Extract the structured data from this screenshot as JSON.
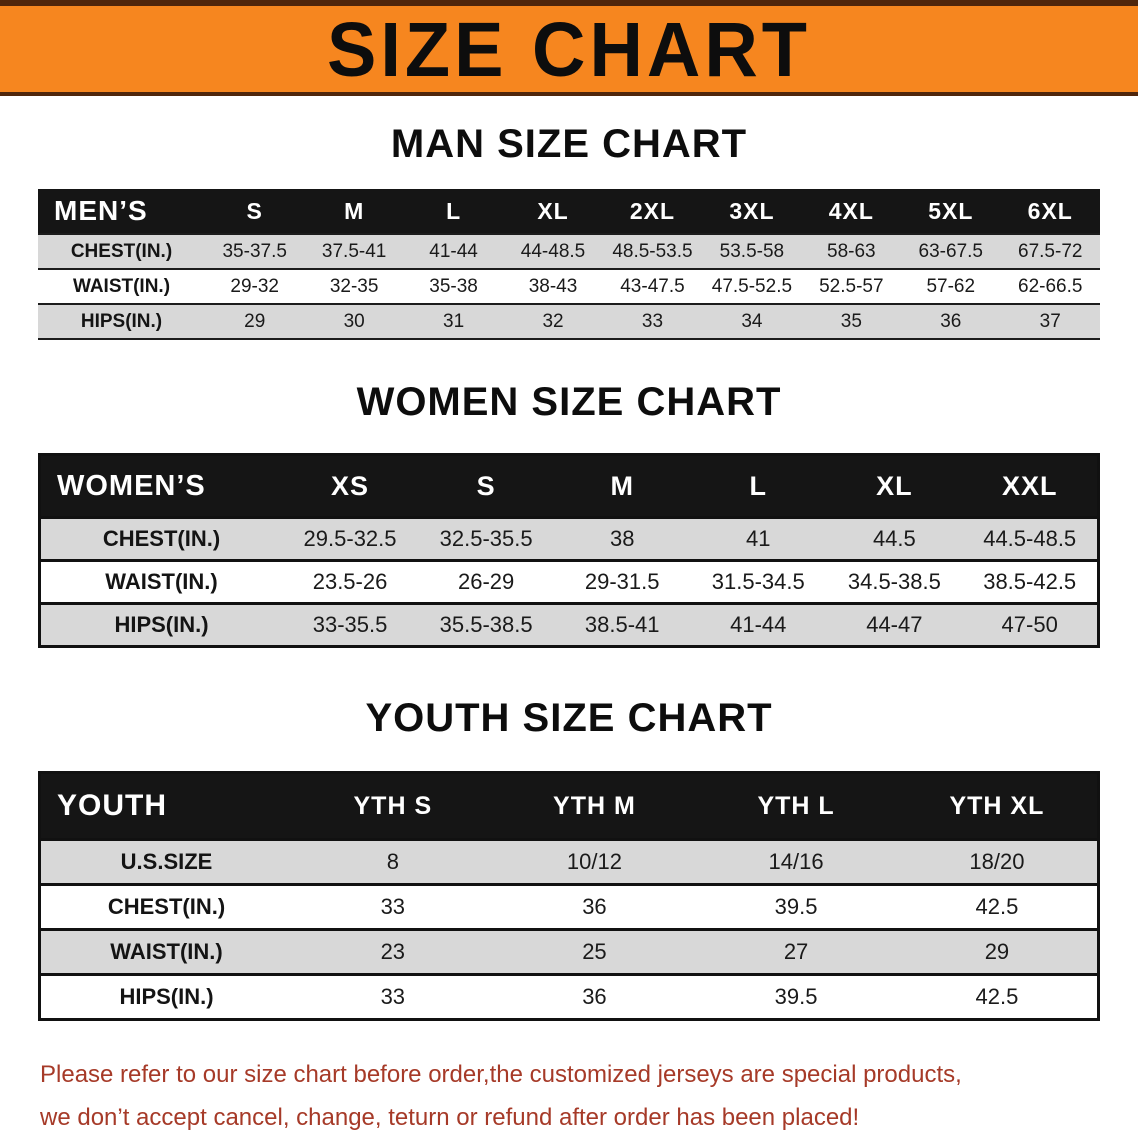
{
  "banner": {
    "title": "SIZE CHART"
  },
  "colors": {
    "banner_bg": "#F6861F",
    "banner_border": "#4F260C",
    "header_bg": "#151515",
    "row_alt": "#D8D8D8",
    "footer_text": "#A63A28"
  },
  "sections": [
    {
      "id": "men",
      "heading": "MAN SIZE CHART",
      "table": {
        "header": [
          "MEN’S",
          "S",
          "M",
          "L",
          "XL",
          "2XL",
          "3XL",
          "4XL",
          "5XL",
          "6XL"
        ],
        "rows": [
          {
            "label": "CHEST(IN.)",
            "values": [
              "35-37.5",
              "37.5-41",
              "41-44",
              "44-48.5",
              "48.5-53.5",
              "53.5-58",
              "58-63",
              "63-67.5",
              "67.5-72"
            ]
          },
          {
            "label": "WAIST(IN.)",
            "values": [
              "29-32",
              "32-35",
              "35-38",
              "38-43",
              "43-47.5",
              "47.5-52.5",
              "52.5-57",
              "57-62",
              "62-66.5"
            ]
          },
          {
            "label": "HIPS(IN.)",
            "values": [
              "29",
              "30",
              "31",
              "32",
              "33",
              "34",
              "35",
              "36",
              "37"
            ]
          }
        ]
      }
    },
    {
      "id": "women",
      "heading": "WOMEN SIZE CHART",
      "table": {
        "header": [
          "WOMEN’S",
          "XS",
          "S",
          "M",
          "L",
          "XL",
          "XXL"
        ],
        "rows": [
          {
            "label": "CHEST(IN.)",
            "values": [
              "29.5-32.5",
              "32.5-35.5",
              "38",
              "41",
              "44.5",
              "44.5-48.5"
            ]
          },
          {
            "label": "WAIST(IN.)",
            "values": [
              "23.5-26",
              "26-29",
              "29-31.5",
              "31.5-34.5",
              "34.5-38.5",
              "38.5-42.5"
            ]
          },
          {
            "label": "HIPS(IN.)",
            "values": [
              "33-35.5",
              "35.5-38.5",
              "38.5-41",
              "41-44",
              "44-47",
              "47-50"
            ]
          }
        ]
      }
    },
    {
      "id": "youth",
      "heading": "YOUTH SIZE CHART",
      "table": {
        "header": [
          "YOUTH",
          "YTH S",
          "YTH M",
          "YTH L",
          "YTH XL"
        ],
        "rows": [
          {
            "label": "U.S.SIZE",
            "values": [
              "8",
              "10/12",
              "14/16",
              "18/20"
            ]
          },
          {
            "label": "CHEST(IN.)",
            "values": [
              "33",
              "36",
              "39.5",
              "42.5"
            ]
          },
          {
            "label": "WAIST(IN.)",
            "values": [
              "23",
              "25",
              "27",
              "29"
            ]
          },
          {
            "label": "HIPS(IN.)",
            "values": [
              "33",
              "36",
              "39.5",
              "42.5"
            ]
          }
        ]
      }
    }
  ],
  "footer": {
    "lines": [
      "Please refer to our size chart before order,the customized jerseys are special products,",
      "we don’t accept cancel, change, teturn or refund after order has been placed!"
    ]
  }
}
